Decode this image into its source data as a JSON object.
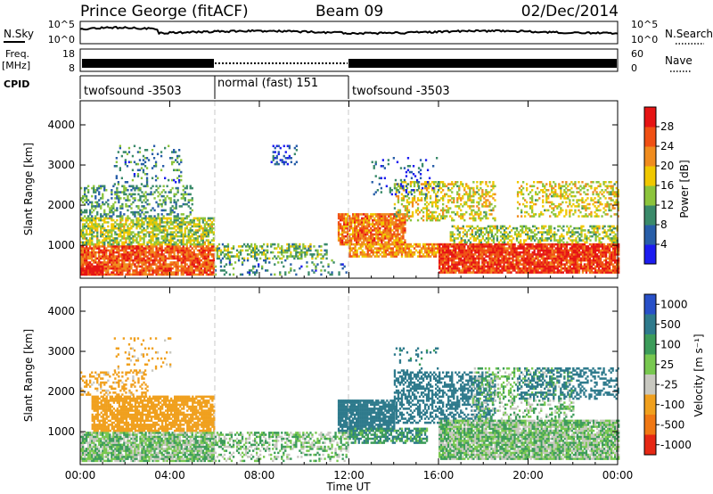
{
  "header": {
    "station": "Prince George (fitACF)",
    "beam": "Beam 09",
    "date": "02/Dec/2014"
  },
  "noise_panel": {
    "left_label": "N.Sky",
    "right_label": "N.Search",
    "left_ticks": [
      "10^5",
      "10^0"
    ],
    "right_ticks": [
      "10^5",
      "10^0"
    ]
  },
  "freq_panel": {
    "left_label_1": "Freq.",
    "left_label_2": "[MHz]",
    "right_label": "Nave",
    "left_ticks": [
      "18",
      "8"
    ],
    "right_ticks": [
      "60",
      "0"
    ]
  },
  "cpid_panel": {
    "label": "CPID",
    "segments": [
      {
        "start_hour": 0,
        "end_hour": 6,
        "text": "twofsound -3503"
      },
      {
        "start_hour": 6,
        "end_hour": 12,
        "text": "normal (fast) 151"
      },
      {
        "start_hour": 12,
        "end_hour": 24,
        "text": "twofsound -3503"
      }
    ]
  },
  "x_axis": {
    "label": "Time UT",
    "ticks": [
      "00:00",
      "04:00",
      "08:00",
      "12:00",
      "16:00",
      "20:00",
      "00:00"
    ],
    "range_hours": [
      0,
      24
    ]
  },
  "power_panel": {
    "ylabel": "Slant Range [km]",
    "yticks": [
      "1000",
      "2000",
      "3000",
      "4000"
    ],
    "ylim_km": [
      180,
      4600
    ],
    "colorbar": {
      "label": "Power [dB]",
      "ticks": [
        "4",
        "8",
        "12",
        "16",
        "20",
        "24",
        "28"
      ],
      "range": [
        0,
        30
      ],
      "colors": [
        "#1c1cf0",
        "#285ea8",
        "#3a8a6a",
        "#8cc43c",
        "#f0c800",
        "#f08c1e",
        "#f05014",
        "#e61414"
      ]
    }
  },
  "velocity_panel": {
    "ylabel": "Slant Range [km]",
    "yticks": [
      "1000",
      "2000",
      "3000",
      "4000"
    ],
    "ylim_km": [
      180,
      4600
    ],
    "colorbar": {
      "label": "Velocity [m s⁻¹]",
      "ticks": [
        "1000",
        "500",
        "100",
        "25",
        "-25",
        "-100",
        "-500",
        "-1000"
      ],
      "colors": [
        "#2850c8",
        "#2e7a8c",
        "#3c9c5a",
        "#78c850",
        "#c8c8c0",
        "#f0a01e",
        "#f07814",
        "#e62814"
      ]
    }
  },
  "chart_data": [
    {
      "type": "heatmap",
      "title": "Power [dB]",
      "xlabel": "Time UT",
      "ylabel": "Slant Range [km]",
      "xlim": [
        0,
        24
      ],
      "ylim": [
        180,
        4600
      ],
      "cmap_range": [
        0,
        30
      ],
      "blobs": [
        {
          "t0": 0.0,
          "t1": 6.0,
          "r0": 250,
          "r1": 1000,
          "value": 24,
          "density": 0.85
        },
        {
          "t0": 0.0,
          "t1": 6.0,
          "r0": 1000,
          "r1": 1700,
          "value": 14,
          "density": 0.7
        },
        {
          "t0": 0.0,
          "t1": 5.0,
          "r0": 1700,
          "r1": 2500,
          "value": 10,
          "density": 0.35
        },
        {
          "t0": 0.0,
          "t1": 1.0,
          "r0": 250,
          "r1": 500,
          "value": 29,
          "density": 0.9
        },
        {
          "t0": 1.5,
          "t1": 4.5,
          "r0": 2500,
          "r1": 3500,
          "value": 8,
          "density": 0.15
        },
        {
          "t0": 6.0,
          "t1": 11.0,
          "r0": 650,
          "r1": 1050,
          "value": 12,
          "density": 0.45
        },
        {
          "t0": 8.5,
          "t1": 9.7,
          "r0": 3000,
          "r1": 3500,
          "value": 6,
          "density": 0.3
        },
        {
          "t0": 6.0,
          "t1": 12.0,
          "r0": 250,
          "r1": 650,
          "value": 8,
          "density": 0.2
        },
        {
          "t0": 11.5,
          "t1": 14.5,
          "r0": 1000,
          "r1": 1800,
          "value": 22,
          "density": 0.85
        },
        {
          "t0": 12.0,
          "t1": 16.0,
          "r0": 700,
          "r1": 1050,
          "value": 20,
          "density": 0.75
        },
        {
          "t0": 14.0,
          "t1": 18.5,
          "r0": 1600,
          "r1": 2600,
          "value": 16,
          "density": 0.4
        },
        {
          "t0": 16.0,
          "t1": 24.0,
          "r0": 300,
          "r1": 1050,
          "value": 26,
          "density": 0.9
        },
        {
          "t0": 16.5,
          "t1": 24.0,
          "r0": 1050,
          "r1": 1500,
          "value": 14,
          "density": 0.5
        },
        {
          "t0": 19.5,
          "t1": 24.0,
          "r0": 1700,
          "r1": 2600,
          "value": 16,
          "density": 0.35
        },
        {
          "t0": 13.0,
          "t1": 16.0,
          "r0": 2200,
          "r1": 3200,
          "value": 6,
          "density": 0.12
        }
      ]
    },
    {
      "type": "heatmap",
      "title": "Velocity [m s⁻¹]",
      "xlabel": "Time UT",
      "ylabel": "Slant Range [km]",
      "xlim": [
        0,
        24
      ],
      "ylim": [
        180,
        4600
      ],
      "blobs": [
        {
          "t0": 0.0,
          "t1": 6.0,
          "r0": 250,
          "r1": 1000,
          "value": 0,
          "density": 0.85
        },
        {
          "t0": 0.5,
          "t1": 6.0,
          "r0": 1000,
          "r1": 1900,
          "value": -300,
          "density": 0.8
        },
        {
          "t0": 0.0,
          "t1": 3.0,
          "r0": 1900,
          "r1": 2500,
          "value": -150,
          "density": 0.35
        },
        {
          "t0": 1.5,
          "t1": 4.0,
          "r0": 2500,
          "r1": 3400,
          "value": -150,
          "density": 0.12
        },
        {
          "t0": 6.0,
          "t1": 12.0,
          "r0": 550,
          "r1": 1000,
          "value": 0,
          "density": 0.55
        },
        {
          "t0": 6.0,
          "t1": 12.0,
          "r0": 250,
          "r1": 550,
          "value": 0,
          "density": 0.25
        },
        {
          "t0": 11.5,
          "t1": 14.0,
          "r0": 1000,
          "r1": 1800,
          "value": 300,
          "density": 0.85
        },
        {
          "t0": 12.0,
          "t1": 15.5,
          "r0": 700,
          "r1": 1100,
          "value": 80,
          "density": 0.65
        },
        {
          "t0": 14.0,
          "t1": 18.5,
          "r0": 1200,
          "r1": 2500,
          "value": 200,
          "density": 0.5
        },
        {
          "t0": 16.0,
          "t1": 24.0,
          "r0": 300,
          "r1": 1300,
          "value": 0,
          "density": 0.9
        },
        {
          "t0": 17.5,
          "t1": 22.0,
          "r0": 1300,
          "r1": 2600,
          "value": 0,
          "density": 0.35
        },
        {
          "t0": 19.5,
          "t1": 24.0,
          "r0": 1800,
          "r1": 2600,
          "value": 300,
          "density": 0.35
        },
        {
          "t0": 14.0,
          "t1": 16.0,
          "r0": 2300,
          "r1": 3100,
          "value": 150,
          "density": 0.12
        }
      ]
    }
  ]
}
